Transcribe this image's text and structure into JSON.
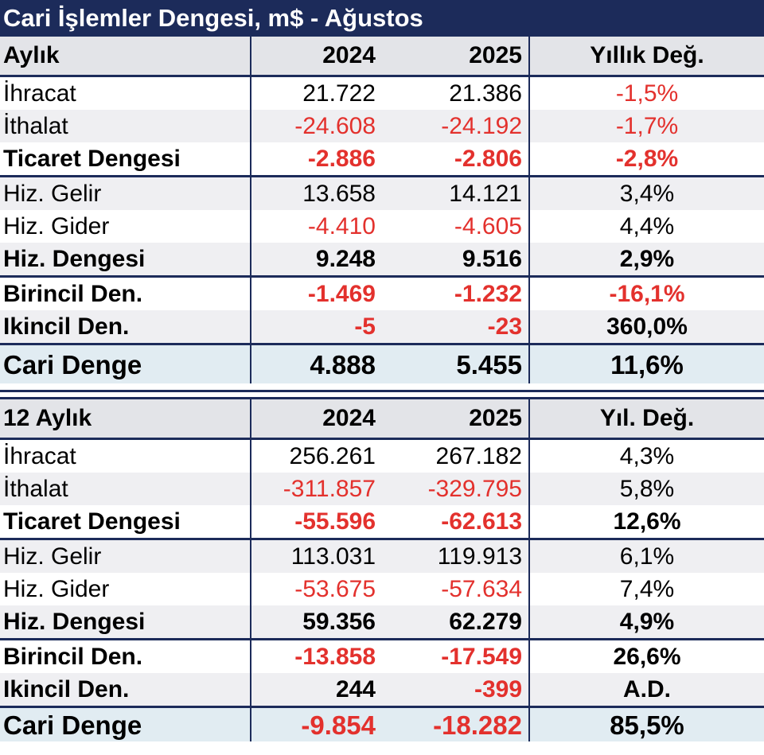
{
  "title": "Cari İşlemler Dengesi, m$ - Ağustos",
  "monthly": {
    "headers": [
      "Aylık",
      "2024",
      "2025",
      "Yıllık Değ."
    ],
    "rows": [
      {
        "label": "İhracat",
        "v2024": "21.722",
        "v2025": "21.386",
        "chg": "-1,5%",
        "neg": [
          false,
          false,
          true
        ],
        "bold": false
      },
      {
        "label": "İthalat",
        "v2024": "-24.608",
        "v2025": "-24.192",
        "chg": "-1,7%",
        "neg": [
          true,
          true,
          true
        ],
        "bold": false
      },
      {
        "label": "Ticaret Dengesi",
        "v2024": "-2.886",
        "v2025": "-2.806",
        "chg": "-2,8%",
        "neg": [
          true,
          true,
          true
        ],
        "bold": true
      },
      {
        "label": "Hiz. Gelir",
        "v2024": "13.658",
        "v2025": "14.121",
        "chg": "3,4%",
        "neg": [
          false,
          false,
          false
        ],
        "bold": false
      },
      {
        "label": "Hiz. Gider",
        "v2024": "-4.410",
        "v2025": "-4.605",
        "chg": "4,4%",
        "neg": [
          true,
          true,
          false
        ],
        "bold": false
      },
      {
        "label": "Hiz. Dengesi",
        "v2024": "9.248",
        "v2025": "9.516",
        "chg": "2,9%",
        "neg": [
          false,
          false,
          false
        ],
        "bold": true
      },
      {
        "label": "Birincil Den.",
        "v2024": "-1.469",
        "v2025": "-1.232",
        "chg": "-16,1%",
        "neg": [
          true,
          true,
          true
        ],
        "bold": true
      },
      {
        "label": "Ikincil Den.",
        "v2024": "-5",
        "v2025": "-23",
        "chg": "360,0%",
        "neg": [
          true,
          true,
          false
        ],
        "bold": true
      }
    ],
    "total": {
      "label": "Cari Denge",
      "v2024": "4.888",
      "v2025": "5.455",
      "chg": "11,6%",
      "neg": [
        false,
        false,
        false
      ]
    }
  },
  "annual": {
    "headers": [
      "12 Aylık",
      "2024",
      "2025",
      "Yıl. Değ."
    ],
    "rows": [
      {
        "label": "İhracat",
        "v2024": "256.261",
        "v2025": "267.182",
        "chg": "4,3%",
        "neg": [
          false,
          false,
          false
        ],
        "bold": false
      },
      {
        "label": "İthalat",
        "v2024": "-311.857",
        "v2025": "-329.795",
        "chg": "5,8%",
        "neg": [
          true,
          true,
          false
        ],
        "bold": false
      },
      {
        "label": "Ticaret Dengesi",
        "v2024": "-55.596",
        "v2025": "-62.613",
        "chg": "12,6%",
        "neg": [
          true,
          true,
          false
        ],
        "bold": true
      },
      {
        "label": "Hiz. Gelir",
        "v2024": "113.031",
        "v2025": "119.913",
        "chg": "6,1%",
        "neg": [
          false,
          false,
          false
        ],
        "bold": false
      },
      {
        "label": "Hiz. Gider",
        "v2024": "-53.675",
        "v2025": "-57.634",
        "chg": "7,4%",
        "neg": [
          true,
          true,
          false
        ],
        "bold": false
      },
      {
        "label": "Hiz. Dengesi",
        "v2024": "59.356",
        "v2025": "62.279",
        "chg": "4,9%",
        "neg": [
          false,
          false,
          false
        ],
        "bold": true
      },
      {
        "label": "Birincil Den.",
        "v2024": "-13.858",
        "v2025": "-17.549",
        "chg": "26,6%",
        "neg": [
          true,
          true,
          false
        ],
        "bold": true
      },
      {
        "label": "Ikincil Den.",
        "v2024": "244",
        "v2025": "-399",
        "chg": "A.D.",
        "neg": [
          false,
          true,
          false
        ],
        "bold": true
      }
    ],
    "total": {
      "label": "Cari Denge",
      "v2024": "-9.854",
      "v2025": "-18.282",
      "chg": "85,5%",
      "neg": [
        true,
        true,
        false
      ]
    }
  },
  "colors": {
    "navy": "#1c2b5a",
    "negative": "#e3312d",
    "header_bg": "#e3e4e8",
    "total_bg": "#e1ecf2"
  }
}
